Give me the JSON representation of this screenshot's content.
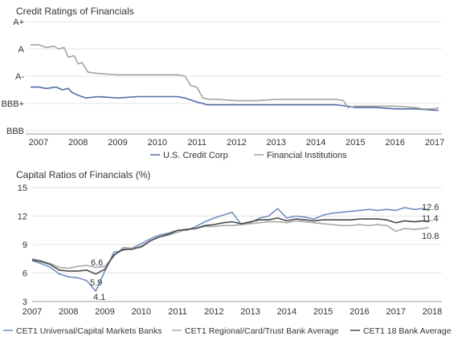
{
  "chart_data": [
    {
      "type": "line",
      "title": "Credit Ratings of Financials",
      "xlabel": "",
      "ylabel": "",
      "y_categories": [
        "BBB",
        "BBB+",
        "A-",
        "A",
        "A+"
      ],
      "ylim": [
        0,
        4
      ],
      "xlim": [
        2006.8,
        2017.1
      ],
      "x_ticks": [
        2007,
        2008,
        2009,
        2010,
        2011,
        2012,
        2013,
        2014,
        2015,
        2016,
        2017
      ],
      "grid": "horizontal",
      "legend_position": "bottom",
      "series": [
        {
          "name": "U.S. Credit Corp",
          "color": "#4f6fa6",
          "x": [
            2006.8,
            2007.0,
            2007.2,
            2007.45,
            2007.6,
            2007.75,
            2007.85,
            2008.0,
            2008.2,
            2008.5,
            2009.0,
            2009.5,
            2010.0,
            2010.5,
            2010.7,
            2010.9,
            2011.0,
            2011.15,
            2011.25,
            2011.5,
            2012.0,
            2012.5,
            2013.0,
            2013.5,
            2014.0,
            2014.5,
            2014.8,
            2015.0,
            2015.5,
            2016.0,
            2016.5,
            2017.0,
            2017.1
          ],
          "y": [
            1.6,
            1.6,
            1.55,
            1.6,
            1.5,
            1.55,
            1.4,
            1.3,
            1.2,
            1.25,
            1.2,
            1.25,
            1.25,
            1.25,
            1.2,
            1.1,
            1.05,
            1.0,
            0.95,
            0.95,
            0.95,
            0.95,
            0.95,
            0.95,
            0.95,
            0.95,
            0.9,
            0.85,
            0.85,
            0.8,
            0.8,
            0.75,
            0.75
          ]
        },
        {
          "name": "Financial Institutions",
          "color": "#a3a3a3",
          "x": [
            2006.8,
            2007.0,
            2007.2,
            2007.4,
            2007.5,
            2007.65,
            2007.75,
            2007.9,
            2008.0,
            2008.1,
            2008.25,
            2008.5,
            2009.0,
            2009.5,
            2010.0,
            2010.5,
            2010.7,
            2010.85,
            2011.0,
            2011.15,
            2011.3,
            2011.5,
            2012.0,
            2012.5,
            2013.0,
            2013.5,
            2014.0,
            2014.5,
            2014.7,
            2014.8,
            2015.0,
            2015.5,
            2016.0,
            2016.5,
            2016.7,
            2017.0,
            2017.1
          ],
          "y": [
            3.15,
            3.15,
            3.05,
            3.1,
            3.0,
            3.05,
            2.7,
            2.75,
            2.45,
            2.5,
            2.15,
            2.1,
            2.05,
            2.05,
            2.05,
            2.05,
            2.0,
            1.65,
            1.6,
            1.2,
            1.15,
            1.15,
            1.1,
            1.1,
            1.15,
            1.15,
            1.15,
            1.15,
            1.1,
            0.85,
            0.9,
            0.9,
            0.9,
            0.85,
            0.8,
            0.8,
            0.85
          ]
        }
      ]
    },
    {
      "type": "line",
      "title": "Capital Ratios of Financials (%)",
      "xlabel": "",
      "ylabel": "",
      "ylim": [
        3,
        15
      ],
      "xlim": [
        2007,
        2018
      ],
      "x_ticks": [
        2007,
        2008,
        2009,
        2010,
        2011,
        2012,
        2013,
        2014,
        2015,
        2016,
        2017,
        2018
      ],
      "y_ticks": [
        3,
        6,
        9,
        12,
        15
      ],
      "grid": "horizontal",
      "legend_position": "bottom",
      "series": [
        {
          "name": "CET1 Universal/Capital Markets Banks",
          "color": "#6f8fbf",
          "x": [
            2007.0,
            2007.25,
            2007.5,
            2007.75,
            2008.0,
            2008.25,
            2008.5,
            2008.75,
            2009.0,
            2009.25,
            2009.5,
            2009.75,
            2010.0,
            2010.25,
            2010.5,
            2010.75,
            2011.0,
            2011.25,
            2011.5,
            2011.75,
            2012.0,
            2012.25,
            2012.5,
            2012.75,
            2013.0,
            2013.25,
            2013.5,
            2013.75,
            2014.0,
            2014.25,
            2014.5,
            2014.75,
            2015.0,
            2015.25,
            2015.5,
            2015.75,
            2016.0,
            2016.25,
            2016.5,
            2016.75,
            2017.0,
            2017.25,
            2017.5,
            2017.75,
            2017.9
          ],
          "y": [
            7.3,
            7.0,
            6.6,
            5.9,
            5.6,
            5.5,
            5.2,
            4.1,
            6.2,
            8.2,
            8.4,
            8.6,
            9.1,
            9.6,
            10.0,
            10.2,
            10.5,
            10.5,
            10.9,
            11.4,
            11.8,
            12.1,
            12.4,
            11.1,
            11.3,
            11.8,
            12.0,
            12.8,
            11.8,
            12.0,
            11.9,
            11.7,
            12.1,
            12.3,
            12.4,
            12.5,
            12.6,
            12.7,
            12.6,
            12.7,
            12.6,
            12.9,
            12.7,
            12.8,
            12.6
          ]
        },
        {
          "name": "CET1 Regional/Card/Trust Bank Average",
          "color": "#a8a8a8",
          "x": [
            2007.0,
            2007.25,
            2007.5,
            2007.75,
            2008.0,
            2008.25,
            2008.5,
            2008.75,
            2009.0,
            2009.25,
            2009.5,
            2009.75,
            2010.0,
            2010.25,
            2010.5,
            2010.75,
            2011.0,
            2011.25,
            2011.5,
            2011.75,
            2012.0,
            2012.25,
            2012.5,
            2012.75,
            2013.0,
            2013.25,
            2013.5,
            2013.75,
            2014.0,
            2014.25,
            2014.5,
            2014.75,
            2015.0,
            2015.25,
            2015.5,
            2015.75,
            2016.0,
            2016.25,
            2016.5,
            2016.75,
            2017.0,
            2017.25,
            2017.5,
            2017.75,
            2017.9
          ],
          "y": [
            7.5,
            7.3,
            7.0,
            6.6,
            6.5,
            6.7,
            6.8,
            6.6,
            6.7,
            7.8,
            8.7,
            8.6,
            8.7,
            9.4,
            9.8,
            10.0,
            10.3,
            10.6,
            10.7,
            10.9,
            10.9,
            11.0,
            11.0,
            11.1,
            11.2,
            11.3,
            11.4,
            11.4,
            11.3,
            11.5,
            11.4,
            11.3,
            11.2,
            11.1,
            11.0,
            11.0,
            11.1,
            11.0,
            11.1,
            11.0,
            10.4,
            10.7,
            10.6,
            10.7,
            10.8
          ]
        },
        {
          "name": "CET1 18 Bank Average",
          "color": "#4a4a4a",
          "x": [
            2007.0,
            2007.25,
            2007.5,
            2007.75,
            2008.0,
            2008.25,
            2008.5,
            2008.75,
            2009.0,
            2009.25,
            2009.5,
            2009.75,
            2010.0,
            2010.25,
            2010.5,
            2010.75,
            2011.0,
            2011.25,
            2011.5,
            2011.75,
            2012.0,
            2012.25,
            2012.5,
            2012.75,
            2013.0,
            2013.25,
            2013.5,
            2013.75,
            2014.0,
            2014.25,
            2014.5,
            2014.75,
            2015.0,
            2015.25,
            2015.5,
            2015.75,
            2016.0,
            2016.25,
            2016.5,
            2016.75,
            2017.0,
            2017.25,
            2017.5,
            2017.75,
            2017.9
          ],
          "y": [
            7.4,
            7.2,
            6.9,
            6.3,
            6.2,
            6.2,
            6.3,
            5.9,
            6.4,
            7.9,
            8.5,
            8.5,
            8.8,
            9.4,
            9.8,
            10.1,
            10.5,
            10.6,
            10.7,
            11.0,
            11.1,
            11.3,
            11.4,
            11.2,
            11.4,
            11.6,
            11.6,
            11.8,
            11.5,
            11.7,
            11.6,
            11.5,
            11.6,
            11.6,
            11.6,
            11.6,
            11.7,
            11.7,
            11.7,
            11.6,
            11.3,
            11.5,
            11.4,
            11.5,
            11.4
          ]
        }
      ],
      "annotations": [
        "6.6",
        "5.9",
        "4.1",
        "12.6",
        "11.4",
        "10.8"
      ]
    }
  ]
}
